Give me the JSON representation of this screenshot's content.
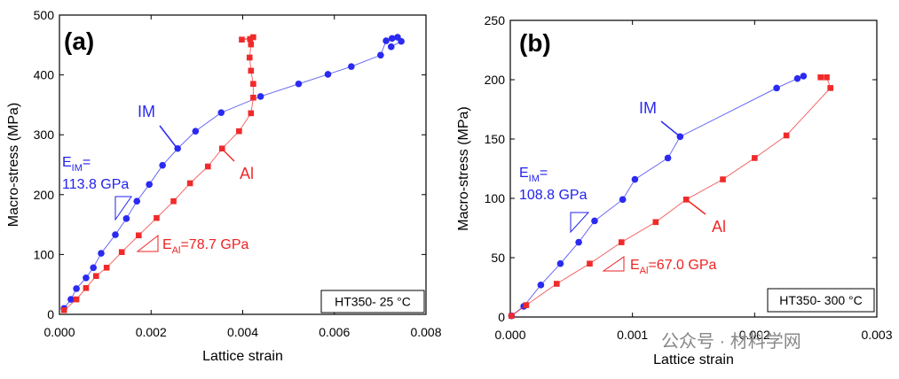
{
  "chart_data": [
    {
      "type": "line",
      "panel_label": "(a)",
      "x_label": "Lattice strain",
      "y_label": "Macro-stress (MPa)",
      "xlim": [
        0,
        0.008
      ],
      "xticks": [
        {
          "value": 0,
          "label": "0.000"
        },
        0.002,
        0.004,
        0.006,
        0.008
      ],
      "ylim": [
        0,
        500
      ],
      "yticks": [
        0,
        100,
        200,
        300,
        400,
        500
      ],
      "condition": "HT350- 25 °C",
      "modulus_labels": [
        {
          "symbol": "E",
          "subscript": "IM",
          "rest": "=",
          "value": "113.8 GPa",
          "color": "#2222ee"
        },
        {
          "symbol": "E",
          "subscript": "Al",
          "rest": "=78.7 GPa",
          "color": "#ee2222"
        }
      ],
      "series": [
        {
          "name": "IM",
          "color": "#2a2af0",
          "marker": "circle",
          "x": [
            0.0001,
            0.00025,
            0.00037,
            0.00058,
            0.00074,
            0.00091,
            0.00122,
            0.00146,
            0.00169,
            0.00196,
            0.00225,
            0.00258,
            0.00297,
            0.00353,
            0.00439,
            0.00522,
            0.00586,
            0.00637,
            0.00701,
            0.00713,
            0.00726,
            0.00738,
            0.00746,
            0.00724
          ],
          "values": [
            10,
            25,
            43,
            61,
            78,
            102,
            133,
            160,
            189,
            217,
            249,
            277,
            306,
            337,
            364,
            385,
            401,
            414,
            433,
            457,
            461,
            463,
            456,
            447
          ]
        },
        {
          "name": "Al",
          "color": "#f02a2a",
          "marker": "square",
          "x": [
            0.0001,
            0.00037,
            0.00058,
            0.0008,
            0.00103,
            0.00136,
            0.00173,
            0.00212,
            0.00249,
            0.00285,
            0.00324,
            0.00355,
            0.00392,
            0.00418,
            0.00423,
            0.00423,
            0.00418,
            0.00415,
            0.00418,
            0.00416,
            0.00398,
            0.00423
          ],
          "values": [
            7,
            25,
            44,
            64,
            78,
            104,
            132,
            161,
            189,
            219,
            247,
            277,
            306,
            336,
            362,
            385,
            407,
            429,
            451,
            460,
            459,
            463
          ]
        }
      ]
    },
    {
      "type": "line",
      "panel_label": "(b)",
      "x_label": "Lattice strain",
      "y_label": "Macro-stress (MPa)",
      "xlim": [
        0,
        0.003
      ],
      "xticks": [
        {
          "value": 0,
          "label": "0.000"
        },
        0.001,
        0.002,
        0.003
      ],
      "ylim": [
        0,
        250
      ],
      "yticks": [
        0,
        50,
        100,
        150,
        200,
        250
      ],
      "condition": "HT350- 300 °C",
      "modulus_labels": [
        {
          "symbol": "E",
          "subscript": "IM",
          "rest": "=",
          "value": "108.8 GPa",
          "color": "#2222ee"
        },
        {
          "symbol": "E",
          "subscript": "Al",
          "rest": "=67.0 GPa",
          "color": "#ee2222"
        }
      ],
      "series": [
        {
          "name": "IM",
          "color": "#2a2af0",
          "marker": "circle",
          "x": [
            1e-05,
            0.00011,
            0.00025,
            0.00041,
            0.00056,
            0.00069,
            0.00092,
            0.00102,
            0.00129,
            0.00139,
            0.00218,
            0.00235,
            0.0024
          ],
          "values": [
            1,
            9,
            27,
            45,
            63,
            81,
            99,
            116,
            134,
            152,
            193,
            201,
            203
          ]
        },
        {
          "name": "Al",
          "color": "#f02a2a",
          "marker": "square",
          "x": [
            1e-05,
            0.00013,
            0.00038,
            0.00065,
            0.00091,
            0.00119,
            0.00144,
            0.00174,
            0.002,
            0.00226,
            0.00262,
            0.00259,
            0.00254
          ],
          "values": [
            1,
            10,
            28,
            45,
            63,
            80,
            99,
            116,
            134,
            153,
            193,
            202,
            202
          ]
        }
      ]
    }
  ],
  "watermark": "公众号 · 材料学网"
}
